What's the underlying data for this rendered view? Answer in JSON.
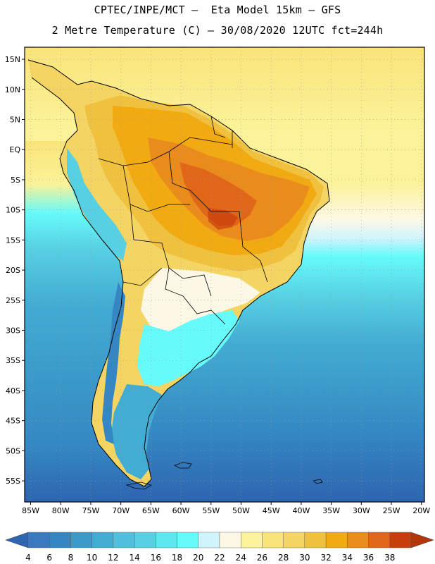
{
  "header": {
    "line1": "CPTEC/INPE/MCT –  Eta Model 15km – GFS",
    "line2": "2 Metre Temperature (C) – 30/08/2020 12UTC fct=244h"
  },
  "map": {
    "lon_range": [
      -86,
      -19.5
    ],
    "lat_range": [
      -58.5,
      17
    ],
    "lat_ticks": [
      "15N",
      "10N",
      "5N",
      "EQ",
      "5S",
      "10S",
      "15S",
      "20S",
      "25S",
      "30S",
      "35S",
      "40S",
      "45S",
      "50S",
      "55S"
    ],
    "lon_ticks": [
      "85W",
      "80W",
      "75W",
      "70W",
      "65W",
      "60W",
      "55W",
      "50W",
      "45W",
      "40W",
      "35W",
      "30W",
      "25W",
      "20W"
    ],
    "grid": "dotted"
  },
  "colorbar": {
    "labels": [
      "4",
      "6",
      "8",
      "10",
      "12",
      "14",
      "16",
      "18",
      "20",
      "22",
      "24",
      "26",
      "28",
      "30",
      "32",
      "34",
      "36",
      "38"
    ],
    "colors": [
      "#3a78c0",
      "#3487c3",
      "#3b9ac9",
      "#43acd3",
      "#4fbfdd",
      "#57d0e3",
      "#5de8f0",
      "#66fafa",
      "#d0f4fc",
      "#fdf8e6",
      "#fbf299",
      "#f9e47a",
      "#f4d462",
      "#f0c13e",
      "#f1aa12",
      "#ea8c1c",
      "#e2661a",
      "#c83d0c"
    ],
    "low_color": "#2e64b0",
    "high_color": "#b4350a"
  }
}
